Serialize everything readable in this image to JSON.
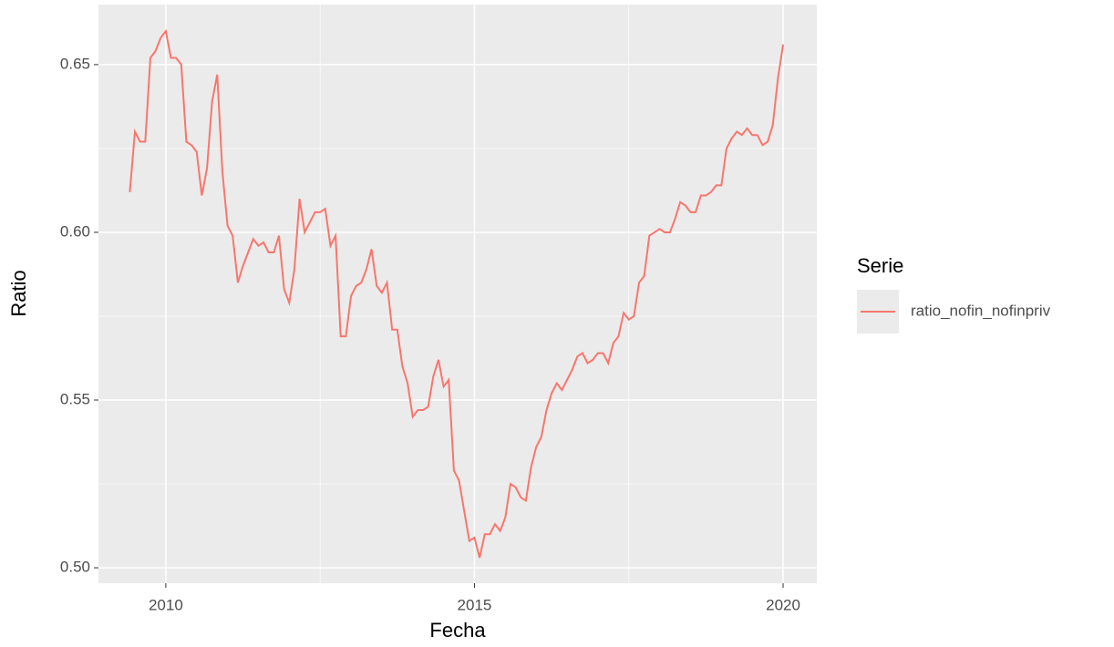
{
  "chart_data": {
    "type": "line",
    "x_label": "Fecha",
    "y_label": "Ratio",
    "legend_title": "Serie",
    "legend_position": "right",
    "grid": true,
    "x": [
      2009.417,
      2009.5,
      2009.583,
      2009.667,
      2009.75,
      2009.833,
      2009.917,
      2010,
      2010.083,
      2010.167,
      2010.25,
      2010.333,
      2010.417,
      2010.5,
      2010.583,
      2010.667,
      2010.75,
      2010.833,
      2010.917,
      2011,
      2011.083,
      2011.167,
      2011.25,
      2011.333,
      2011.417,
      2011.5,
      2011.583,
      2011.667,
      2011.75,
      2011.833,
      2011.917,
      2012,
      2012.083,
      2012.167,
      2012.25,
      2012.333,
      2012.417,
      2012.5,
      2012.583,
      2012.667,
      2012.75,
      2012.833,
      2012.917,
      2013,
      2013.083,
      2013.167,
      2013.25,
      2013.333,
      2013.417,
      2013.5,
      2013.583,
      2013.667,
      2013.75,
      2013.833,
      2013.917,
      2014,
      2014.083,
      2014.167,
      2014.25,
      2014.333,
      2014.417,
      2014.5,
      2014.583,
      2014.667,
      2014.75,
      2014.833,
      2014.917,
      2015,
      2015.083,
      2015.167,
      2015.25,
      2015.333,
      2015.417,
      2015.5,
      2015.583,
      2015.667,
      2015.75,
      2015.833,
      2015.917,
      2016,
      2016.083,
      2016.167,
      2016.25,
      2016.333,
      2016.417,
      2016.5,
      2016.583,
      2016.667,
      2016.75,
      2016.833,
      2016.917,
      2017,
      2017.083,
      2017.167,
      2017.25,
      2017.333,
      2017.417,
      2017.5,
      2017.583,
      2017.667,
      2017.75,
      2017.833,
      2017.917,
      2018,
      2018.083,
      2018.167,
      2018.25,
      2018.333,
      2018.417,
      2018.5,
      2018.583,
      2018.667,
      2018.75,
      2018.833,
      2018.917,
      2019,
      2019.083,
      2019.167,
      2019.25,
      2019.333,
      2019.417,
      2019.5,
      2019.583,
      2019.667,
      2019.75,
      2019.833,
      2019.917,
      2020
    ],
    "series": [
      {
        "name": "ratio_nofin_nofinpriv",
        "color": "#F8766D",
        "values": [
          0.612,
          0.63,
          0.627,
          0.627,
          0.652,
          0.654,
          0.658,
          0.66,
          0.652,
          0.652,
          0.65,
          0.627,
          0.626,
          0.624,
          0.611,
          0.619,
          0.639,
          0.647,
          0.618,
          0.602,
          0.599,
          0.585,
          0.59,
          0.594,
          0.598,
          0.596,
          0.597,
          0.594,
          0.594,
          0.599,
          0.583,
          0.579,
          0.589,
          0.61,
          0.6,
          0.603,
          0.606,
          0.606,
          0.607,
          0.596,
          0.599,
          0.569,
          0.569,
          0.581,
          0.584,
          0.585,
          0.589,
          0.595,
          0.584,
          0.582,
          0.585,
          0.571,
          0.571,
          0.56,
          0.555,
          0.545,
          0.547,
          0.547,
          0.548,
          0.557,
          0.562,
          0.554,
          0.556,
          0.529,
          0.526,
          0.517,
          0.508,
          0.509,
          0.503,
          0.51,
          0.51,
          0.513,
          0.511,
          0.515,
          0.525,
          0.524,
          0.521,
          0.52,
          0.53,
          0.536,
          0.539,
          0.547,
          0.552,
          0.555,
          0.553,
          0.556,
          0.559,
          0.563,
          0.564,
          0.561,
          0.562,
          0.564,
          0.564,
          0.561,
          0.567,
          0.569,
          0.576,
          0.574,
          0.575,
          0.585,
          0.587,
          0.599,
          0.6,
          0.601,
          0.6,
          0.6,
          0.604,
          0.609,
          0.608,
          0.606,
          0.606,
          0.611,
          0.611,
          0.612,
          0.614,
          0.614,
          0.625,
          0.628,
          0.63,
          0.629,
          0.631,
          0.629,
          0.629,
          0.626,
          0.627,
          0.632,
          0.646,
          0.656
        ]
      }
    ],
    "xlim": [
      2008.909,
      2020.546
    ],
    "xticks": [
      2010,
      2015,
      2020
    ],
    "ylim": [
      0.4954,
      0.6679
    ],
    "yticks": [
      {
        "value": 0.5,
        "label": "0.50"
      },
      0.55,
      {
        "value": 0.6,
        "label": "0.60"
      },
      0.65
    ]
  }
}
